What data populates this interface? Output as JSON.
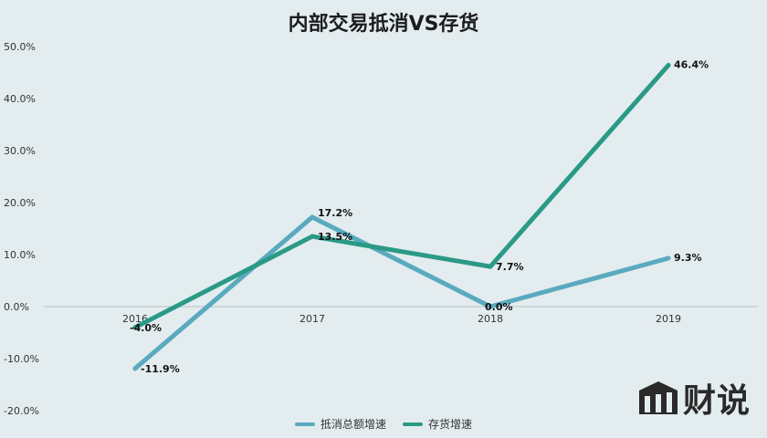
{
  "chart_data": {
    "type": "line",
    "title": "内部交易抵消VS存货",
    "categories": [
      "2016",
      "2017",
      "2018",
      "2019"
    ],
    "series": [
      {
        "name": "抵消总额增速",
        "color": "#5aaabf",
        "values": [
          -11.9,
          17.2,
          0.0,
          9.3
        ],
        "labels": [
          "-11.9%",
          "17.2%",
          "0.0%",
          "9.3%"
        ]
      },
      {
        "name": "存货增速",
        "color": "#2a9a86",
        "values": [
          -4.0,
          13.5,
          7.7,
          46.4
        ],
        "labels": [
          "-4.0%",
          "13.5%",
          "7.7%",
          "46.4%"
        ]
      }
    ],
    "y_ticks": [
      "50.0%",
      "40.0%",
      "30.0%",
      "20.0%",
      "10.0%",
      "0.0%",
      "-10.0%",
      "-20.0%"
    ],
    "ylim": [
      -20,
      50
    ],
    "xlabel": "",
    "ylabel": "",
    "grid": false,
    "legend_position": "bottom"
  },
  "branding": {
    "logo_text": "财说"
  }
}
